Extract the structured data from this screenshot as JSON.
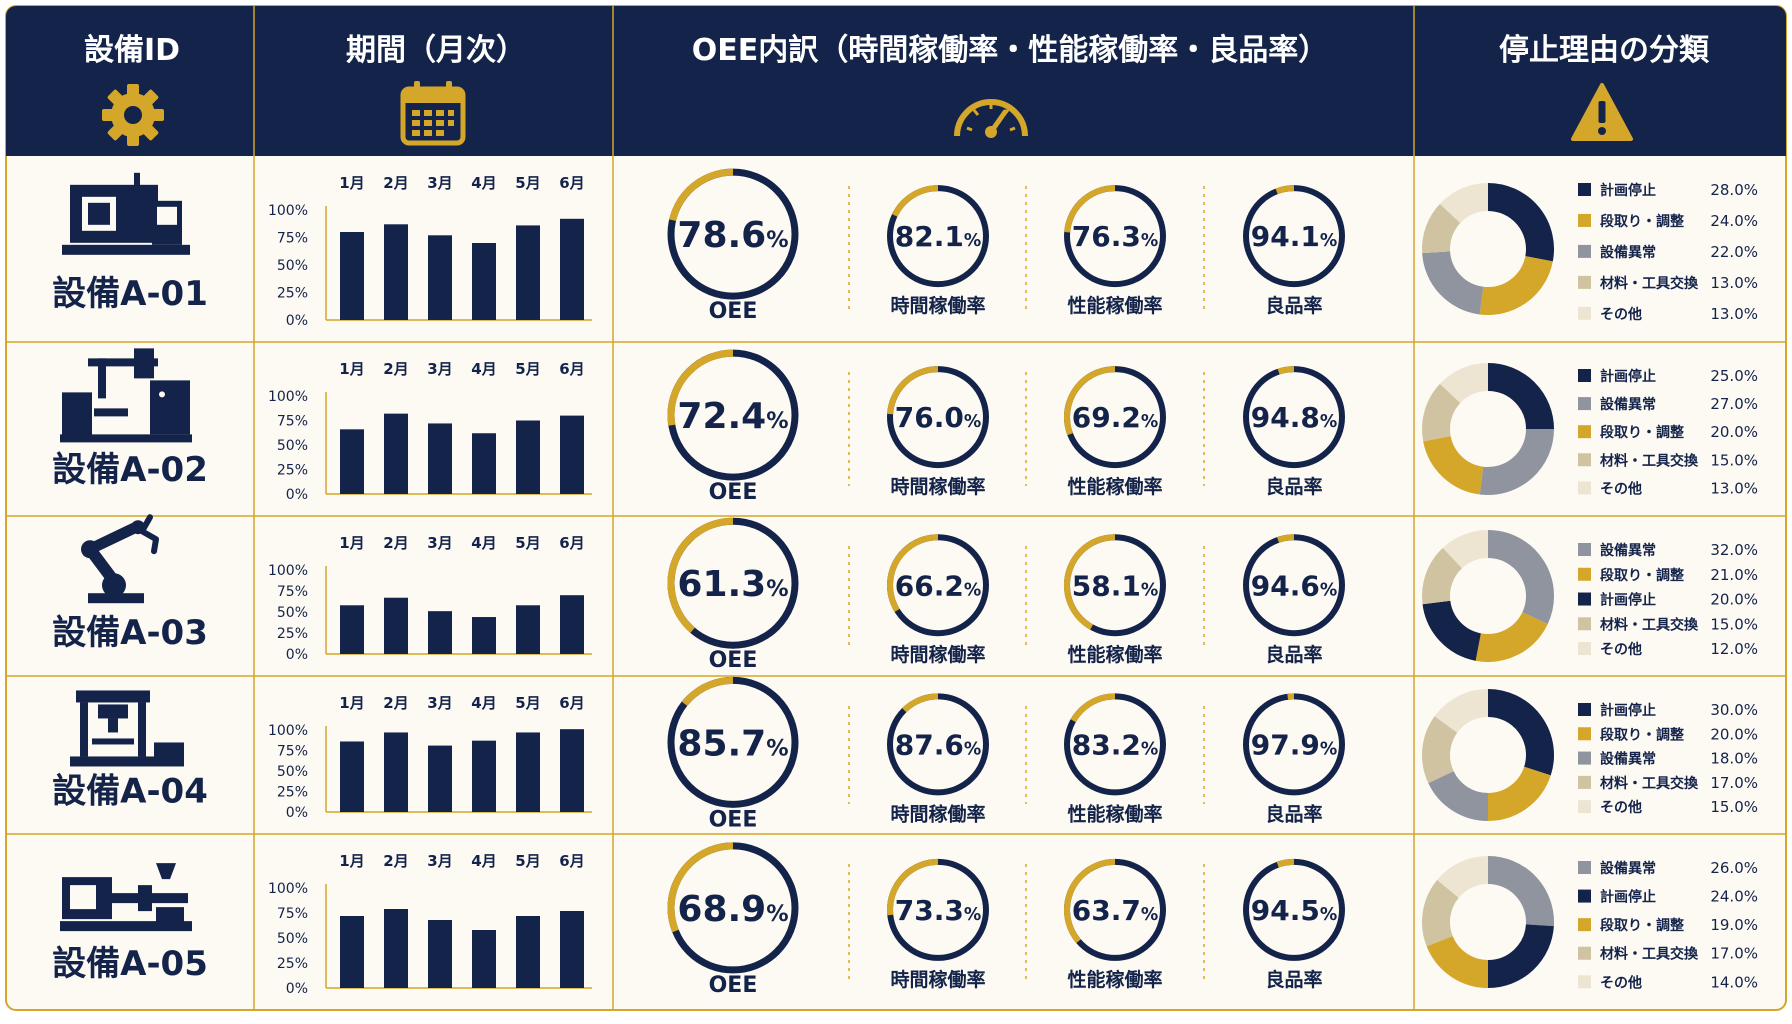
{
  "header": {
    "col_equipment": "設備ID",
    "col_period": "期間（月次）",
    "col_oee": "OEE内訳（時間稼働率・性能稼働率・良品率）",
    "col_stop": "停止理由の分類"
  },
  "icons": {
    "equipment": "gear-icon",
    "period": "calendar-icon",
    "oee": "gauge-icon",
    "stop": "warning-icon"
  },
  "colors": {
    "navy": "#14234a",
    "gold": "#d4a72a",
    "gray": "#8f949f",
    "beige": "#cfc3a1",
    "cream": "#ede5d2",
    "row_bg": "#fcfaf3"
  },
  "labels": {
    "oee": "OEE",
    "availability": "時間稼働率",
    "performance": "性能稼働率",
    "quality": "良品率",
    "percent": "%"
  },
  "chart_data": [
    {
      "equipment": "設備A-01",
      "icon": "cnc-machine-icon",
      "type": "bar",
      "categories": [
        "1月",
        "2月",
        "3月",
        "4月",
        "5月",
        "6月"
      ],
      "values": [
        80,
        87,
        77,
        70,
        86,
        92
      ],
      "yticks": [
        "100%",
        "75%",
        "50%",
        "25%",
        "0%"
      ],
      "ylim": [
        0,
        100
      ],
      "oee": "78.6",
      "availability": "82.1",
      "performance": "76.3",
      "quality": "94.1",
      "stop_reasons": [
        {
          "label": "計画停止",
          "value": "28.0%",
          "pct": 28.0,
          "color": "navy"
        },
        {
          "label": "段取り・調整",
          "value": "24.0%",
          "pct": 24.0,
          "color": "gold"
        },
        {
          "label": "設備異常",
          "value": "22.0%",
          "pct": 22.0,
          "color": "gray"
        },
        {
          "label": "材料・工具交換",
          "value": "13.0%",
          "pct": 13.0,
          "color": "beige"
        },
        {
          "label": "その他",
          "value": "13.0%",
          "pct": 13.0,
          "color": "cream"
        }
      ]
    },
    {
      "equipment": "設備A-02",
      "icon": "machining-center-icon",
      "type": "bar",
      "categories": [
        "1月",
        "2月",
        "3月",
        "4月",
        "5月",
        "6月"
      ],
      "values": [
        66,
        82,
        72,
        62,
        75,
        80
      ],
      "yticks": [
        "100%",
        "75%",
        "50%",
        "25%",
        "0%"
      ],
      "ylim": [
        0,
        100
      ],
      "oee": "72.4",
      "availability": "76.0",
      "performance": "69.2",
      "quality": "94.8",
      "stop_reasons": [
        {
          "label": "計画停止",
          "value": "25.0%",
          "pct": 25.0,
          "color": "navy"
        },
        {
          "label": "設備異常",
          "value": "27.0%",
          "pct": 27.0,
          "color": "gray"
        },
        {
          "label": "段取り・調整",
          "value": "20.0%",
          "pct": 20.0,
          "color": "gold"
        },
        {
          "label": "材料・工具交換",
          "value": "15.0%",
          "pct": 15.0,
          "color": "beige"
        },
        {
          "label": "その他",
          "value": "13.0%",
          "pct": 13.0,
          "color": "cream"
        }
      ]
    },
    {
      "equipment": "設備A-03",
      "icon": "robot-arm-icon",
      "type": "bar",
      "categories": [
        "1月",
        "2月",
        "3月",
        "4月",
        "5月",
        "6月"
      ],
      "values": [
        58,
        67,
        51,
        44,
        58,
        70
      ],
      "yticks": [
        "100%",
        "75%",
        "50%",
        "25%",
        "0%"
      ],
      "ylim": [
        0,
        100
      ],
      "oee": "61.3",
      "availability": "66.2",
      "performance": "58.1",
      "quality": "94.6",
      "stop_reasons": [
        {
          "label": "設備異常",
          "value": "32.0%",
          "pct": 32.0,
          "color": "gray"
        },
        {
          "label": "段取り・調整",
          "value": "21.0%",
          "pct": 21.0,
          "color": "gold"
        },
        {
          "label": "計画停止",
          "value": "20.0%",
          "pct": 20.0,
          "color": "navy"
        },
        {
          "label": "材料・工具交換",
          "value": "15.0%",
          "pct": 15.0,
          "color": "beige"
        },
        {
          "label": "その他",
          "value": "12.0%",
          "pct": 12.0,
          "color": "cream"
        }
      ]
    },
    {
      "equipment": "設備A-04",
      "icon": "press-machine-icon",
      "type": "bar",
      "categories": [
        "1月",
        "2月",
        "3月",
        "4月",
        "5月",
        "6月"
      ],
      "values": [
        86,
        97,
        81,
        87,
        97,
        101
      ],
      "yticks": [
        "100%",
        "75%",
        "50%",
        "25%",
        "0%"
      ],
      "ylim": [
        0,
        100
      ],
      "oee": "85.7",
      "availability": "87.6",
      "performance": "83.2",
      "quality": "97.9",
      "stop_reasons": [
        {
          "label": "計画停止",
          "value": "30.0%",
          "pct": 30.0,
          "color": "navy"
        },
        {
          "label": "段取り・調整",
          "value": "20.0%",
          "pct": 20.0,
          "color": "gold"
        },
        {
          "label": "設備異常",
          "value": "18.0%",
          "pct": 18.0,
          "color": "gray"
        },
        {
          "label": "材料・工具交換",
          "value": "17.0%",
          "pct": 17.0,
          "color": "beige"
        },
        {
          "label": "その他",
          "value": "15.0%",
          "pct": 15.0,
          "color": "cream"
        }
      ]
    },
    {
      "equipment": "設備A-05",
      "icon": "injection-molding-icon",
      "type": "bar",
      "categories": [
        "1月",
        "2月",
        "3月",
        "4月",
        "5月",
        "6月"
      ],
      "values": [
        72,
        79,
        68,
        58,
        72,
        77
      ],
      "yticks": [
        "100%",
        "75%",
        "50%",
        "25%",
        "0%"
      ],
      "ylim": [
        0,
        100
      ],
      "oee": "68.9",
      "availability": "73.3",
      "performance": "63.7",
      "quality": "94.5",
      "stop_reasons": [
        {
          "label": "設備異常",
          "value": "26.0%",
          "pct": 26.0,
          "color": "gray"
        },
        {
          "label": "計画停止",
          "value": "24.0%",
          "pct": 24.0,
          "color": "navy"
        },
        {
          "label": "段取り・調整",
          "value": "19.0%",
          "pct": 19.0,
          "color": "gold"
        },
        {
          "label": "材料・工具交換",
          "value": "17.0%",
          "pct": 17.0,
          "color": "beige"
        },
        {
          "label": "その他",
          "value": "14.0%",
          "pct": 14.0,
          "color": "cream"
        }
      ]
    }
  ]
}
